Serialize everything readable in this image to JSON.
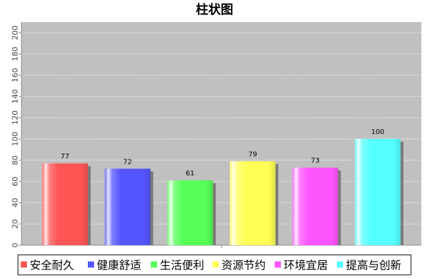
{
  "chart_data": {
    "type": "bar",
    "title": "柱状图",
    "xlabel": "",
    "ylabel": "",
    "categories": [
      "安全耐久",
      "健康舒适",
      "生活便利",
      "资源节约",
      "环境宜居",
      "提高与创新"
    ],
    "values": [
      77,
      72,
      61,
      79,
      73,
      100
    ],
    "colors": [
      "#ff5555",
      "#5555ff",
      "#55ff55",
      "#ffff55",
      "#ff55ff",
      "#55ffff"
    ],
    "ylim": [
      0,
      210
    ],
    "yticks": [
      0,
      20,
      40,
      60,
      80,
      100,
      120,
      140,
      160,
      180,
      200
    ],
    "grid": true,
    "legend_position": "bottom",
    "plot_background": "#c0c0c0"
  }
}
